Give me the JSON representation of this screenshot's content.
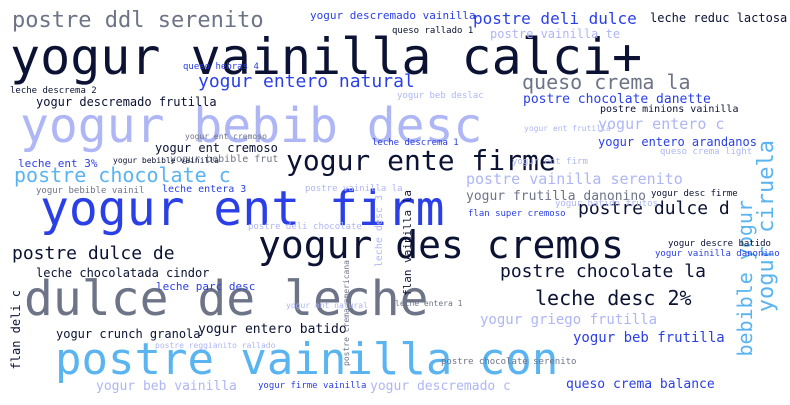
{
  "palette": {
    "navy": "#0b1233",
    "slate": "#6e7487",
    "blue": "#2a3fe6",
    "periwinkle": "#aeb6f5",
    "sky": "#5ab4f0",
    "background": "#ffffff"
  },
  "words": [
    {
      "text": "yogur vainilla calci+",
      "color": "#0b1233"
    },
    {
      "text": "dulce de leche",
      "color": "#6e7487"
    },
    {
      "text": "yogur bebib desc",
      "color": "#aeb6f5"
    },
    {
      "text": "postre vainilla con",
      "color": "#5ab4f0"
    },
    {
      "text": "yogur ent firm",
      "color": "#2a3fe6"
    },
    {
      "text": "yogur des cremos",
      "color": "#0b1233"
    },
    {
      "text": "yogur ente firme",
      "color": "#0b1233"
    },
    {
      "text": "postre ddl serenito",
      "color": "#6e7487"
    },
    {
      "text": "queso crema la",
      "color": "#6e7487"
    },
    {
      "text": "postre chocolate c",
      "color": "#5ab4f0"
    },
    {
      "text": "leche desc 2%",
      "color": "#0b1233"
    },
    {
      "text": "yogur entero natural",
      "color": "#2a3fe6"
    },
    {
      "text": "postre dulce d",
      "color": "#0b1233"
    },
    {
      "text": "postre dulce de",
      "color": "#0b1233"
    },
    {
      "text": "postre chocolate la",
      "color": "#0b1233"
    },
    {
      "text": "postre deli dulce",
      "color": "#2a3fe6"
    },
    {
      "text": "yogur ciruela",
      "color": "#5ab4f0"
    },
    {
      "text": "bebible yogur",
      "color": "#5ab4f0"
    },
    {
      "text": "yogur descremado vainilla",
      "color": "#2a3fe6"
    },
    {
      "text": "leche reduc lactosa",
      "color": "#0b1233"
    },
    {
      "text": "postre vainilla te",
      "color": "#aeb6f5"
    },
    {
      "text": "postre vainilla serenito",
      "color": "#aeb6f5"
    },
    {
      "text": "postre chocolate danette",
      "color": "#2a3fe6"
    },
    {
      "text": "yogur descremado frutilla",
      "color": "#0b1233"
    },
    {
      "text": "yogur entero c",
      "color": "#aeb6f5"
    },
    {
      "text": "yogur entero arandanos",
      "color": "#2a3fe6"
    },
    {
      "text": "yogur ent cremoso",
      "color": "#0b1233"
    },
    {
      "text": "yogur frutilla danonino",
      "color": "#6e7487"
    },
    {
      "text": "leche chocolatada cindor",
      "color": "#0b1233"
    },
    {
      "text": "yogur entero batido",
      "color": "#0b1233"
    },
    {
      "text": "yogur griego frutilla",
      "color": "#aeb6f5"
    },
    {
      "text": "yogur beb frutilla",
      "color": "#2a3fe6"
    },
    {
      "text": "yogur crunch granola",
      "color": "#0b1233"
    },
    {
      "text": "queso crema balance",
      "color": "#2a3fe6"
    },
    {
      "text": "yogur beb vainilla",
      "color": "#aeb6f5"
    },
    {
      "text": "yogur descremado c",
      "color": "#aeb6f5"
    },
    {
      "text": "yogur firme vainilla",
      "color": "#2a3fe6"
    },
    {
      "text": "leche parc desc",
      "color": "#2a3fe6"
    },
    {
      "text": "leche ent 3%",
      "color": "#2a3fe6"
    },
    {
      "text": "yogur bebible vainil",
      "color": "#6e7487"
    },
    {
      "text": "yogur bebible frut",
      "color": "#6e7487"
    },
    {
      "text": "leche entera 3",
      "color": "#2a3fe6"
    },
    {
      "text": "flan deli c",
      "color": "#0b1233"
    },
    {
      "text": "flan vainilla la",
      "color": "#0b1233"
    },
    {
      "text": "leche desc 3",
      "color": "#aeb6f5"
    },
    {
      "text": "leche descrema 1",
      "color": "#2a3fe6"
    },
    {
      "text": "leche descrema 2",
      "color": "#0b1233"
    },
    {
      "text": "queso rallado 1",
      "color": "#0b1233"
    },
    {
      "text": "queso hebras 4",
      "color": "#2a3fe6"
    },
    {
      "text": "postre minions vainilla",
      "color": "#0b1233"
    },
    {
      "text": "yogur desc firme",
      "color": "#0b1233"
    },
    {
      "text": "yogur descre batido",
      "color": "#0b1233"
    },
    {
      "text": "yogur ent cremoso",
      "color": "#6e7487"
    },
    {
      "text": "yogur beb deslac",
      "color": "#aeb6f5"
    },
    {
      "text": "yogur vainilla danonino",
      "color": "#2a3fe6"
    },
    {
      "text": "yogur batido frutos",
      "color": "#aeb6f5"
    },
    {
      "text": "queso crema light",
      "color": "#aeb6f5"
    },
    {
      "text": "yogur ent frutilla",
      "color": "#aeb6f5"
    },
    {
      "text": "flan super cremoso",
      "color": "#2a3fe6"
    },
    {
      "text": "postre deli chocolate",
      "color": "#aeb6f5"
    },
    {
      "text": "postre chocolate serenito",
      "color": "#6e7487"
    },
    {
      "text": "postre crema americana",
      "color": "#6e7487"
    },
    {
      "text": "postre vainilla la",
      "color": "#aeb6f5"
    },
    {
      "text": "yogur bebible vainilla",
      "color": "#0b1233"
    },
    {
      "text": "postre reggianito rallado",
      "color": "#aeb6f5"
    },
    {
      "text": "leche entera 1",
      "color": "#6e7487"
    },
    {
      "text": "yogur ent firm",
      "color": "#aeb6f5"
    },
    {
      "text": "yogur ent natural",
      "color": "#aeb6f5"
    }
  ]
}
